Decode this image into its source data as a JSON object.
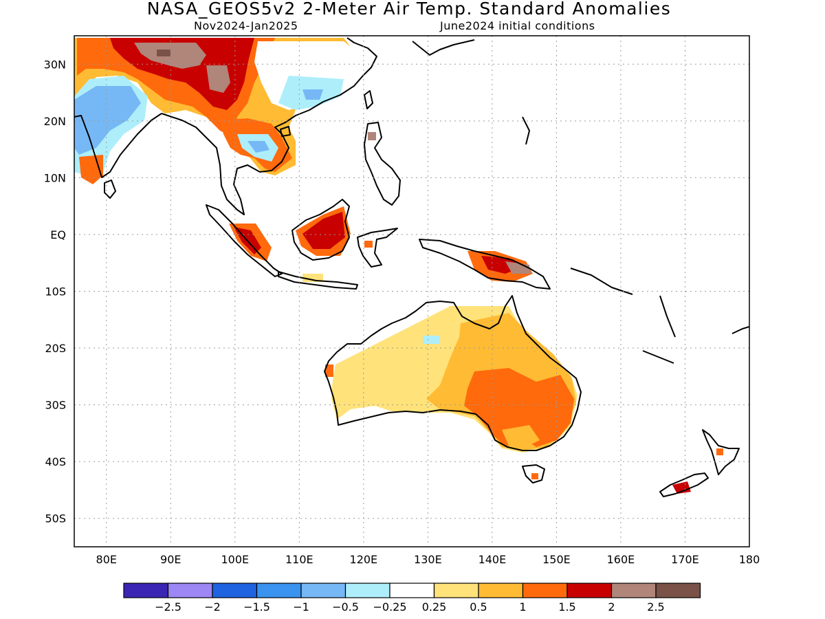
{
  "title": "NASA_GEOS5v2 2-Meter Air Temp. Standard Anomalies",
  "subtitle_left": "Nov2024-Jan2025",
  "subtitle_right": "June2024 initial conditions",
  "map": {
    "lon_range": [
      75,
      180
    ],
    "lat_range": [
      -55,
      35
    ],
    "lat_labels": [
      "30N",
      "20N",
      "10N",
      "EQ",
      "10S",
      "20S",
      "30S",
      "40S",
      "50S"
    ],
    "lon_labels": [
      "80E",
      "90E",
      "100E",
      "110E",
      "120E",
      "130E",
      "140E",
      "150E",
      "160E",
      "170E",
      "180"
    ],
    "gridlines": "dotted"
  },
  "legend": {
    "colors": [
      "#3b26b4",
      "#9c87f5",
      "#1f63e0",
      "#3a93ef",
      "#76b8f5",
      "#aeeefb",
      "#ffffff",
      "#ffe27a",
      "#ffbb33",
      "#ff6a0d",
      "#c80000",
      "#b0857a",
      "#7a5248"
    ],
    "labels": [
      "-2.5",
      "-2",
      "-1.5",
      "-1",
      "-0.5",
      "-0.25",
      "0.25",
      "0.5",
      "1",
      "1.5",
      "2",
      "2.5"
    ]
  }
}
